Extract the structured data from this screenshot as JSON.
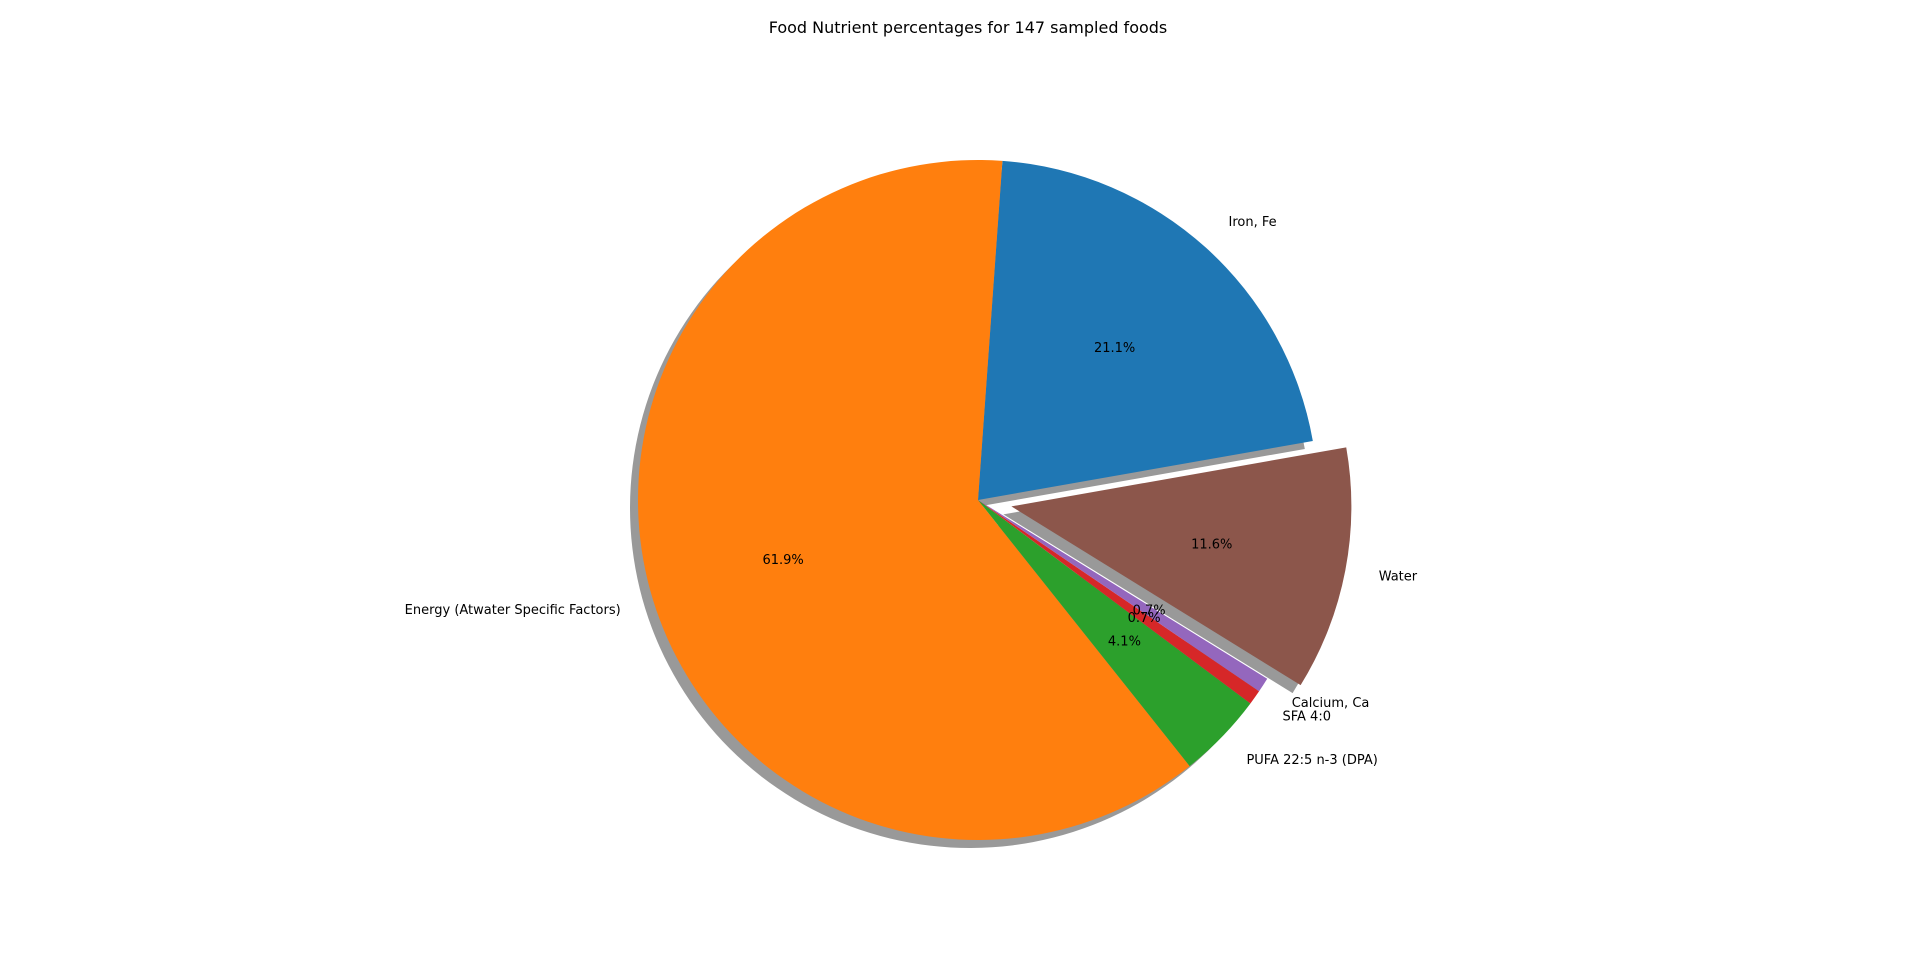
{
  "chart_data": {
    "type": "pie",
    "title": "Food Nutrient percentages for 147 sampled foods",
    "start_angle_deg": 10,
    "counterclockwise": true,
    "shadow": true,
    "slices": [
      {
        "label": "Iron, Fe",
        "value": 21.1,
        "pct_label": "21.1%",
        "color": "#1f77b4",
        "explode": 0
      },
      {
        "label": "Energy (Atwater Specific Factors)",
        "value": 61.9,
        "pct_label": "61.9%",
        "color": "#ff7f0e",
        "explode": 0
      },
      {
        "label": "PUFA 22:5 n-3 (DPA)",
        "value": 4.1,
        "pct_label": "4.1%",
        "color": "#2ca02c",
        "explode": 0
      },
      {
        "label": "SFA 4:0",
        "value": 0.7,
        "pct_label": "0.7%",
        "color": "#d62728",
        "explode": 0
      },
      {
        "label": "Calcium, Ca",
        "value": 0.7,
        "pct_label": "0.7%",
        "color": "#9467bd",
        "explode": 0
      },
      {
        "label": "Water",
        "value": 11.6,
        "pct_label": "11.6%",
        "color": "#8c564b",
        "explode": 0.1
      }
    ]
  }
}
